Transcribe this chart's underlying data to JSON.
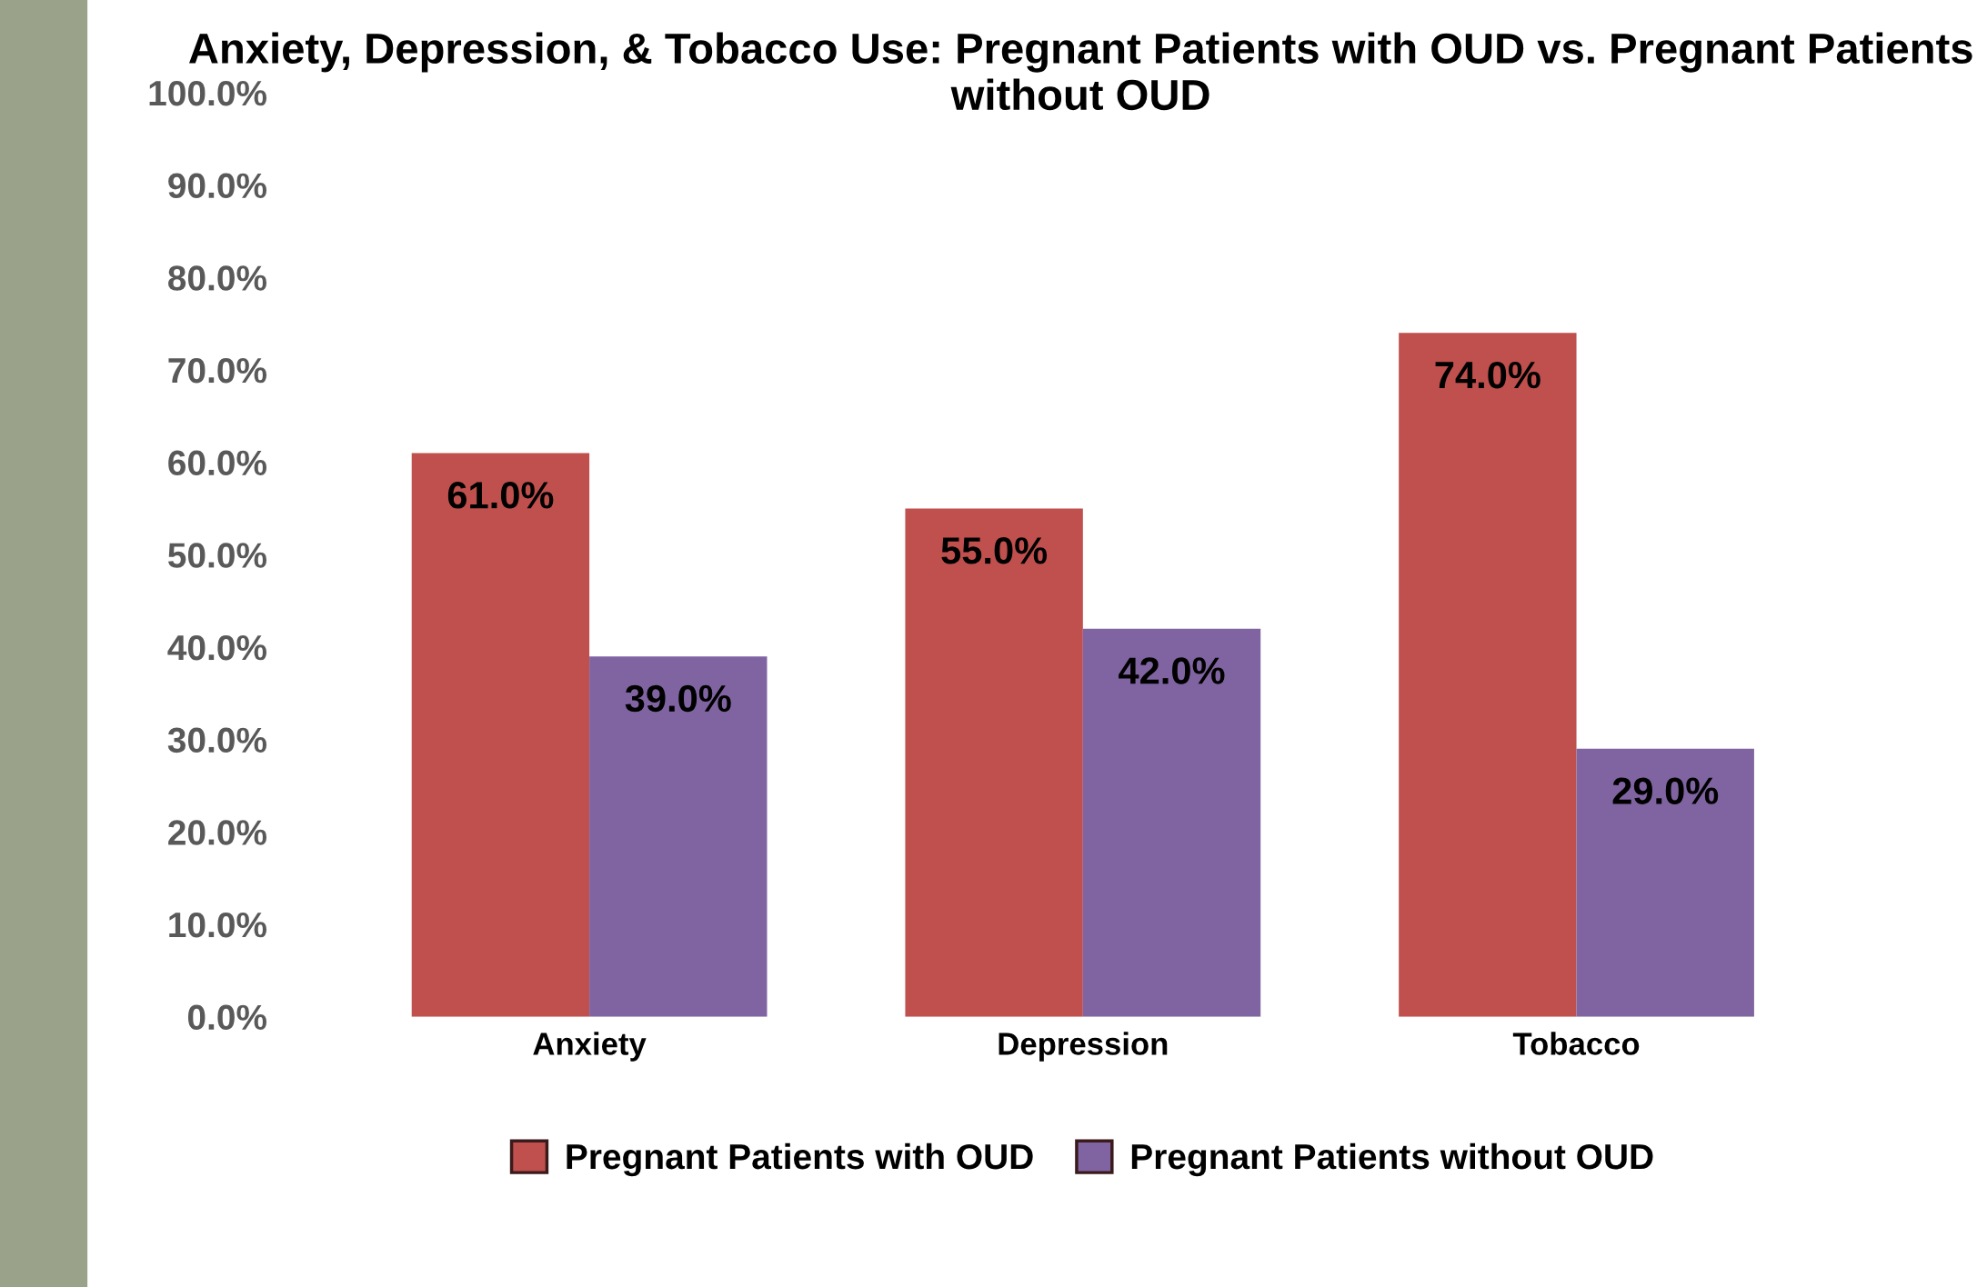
{
  "chart_data": {
    "type": "bar",
    "title": "Anxiety, Depression, & Tobacco Use: Pregnant Patients with OUD vs. Pregnant Patients without OUD",
    "categories": [
      "Anxiety",
      "Depression",
      "Tobacco"
    ],
    "series": [
      {
        "name": "Pregnant Patients with OUD",
        "color": "#c0504d",
        "values": [
          61.0,
          55.0,
          74.0
        ],
        "value_labels": [
          "61.0%",
          "55.0%",
          "74.0%"
        ]
      },
      {
        "name": "Pregnant Patients without OUD",
        "color": "#8064a2",
        "values": [
          39.0,
          42.0,
          29.0
        ],
        "value_labels": [
          "39.0%",
          "42.0%",
          "29.0%"
        ]
      }
    ],
    "ylim": [
      0,
      100
    ],
    "yticks": [
      {
        "value": 0,
        "label": "0.0%"
      },
      {
        "value": 10,
        "label": "10.0%"
      },
      {
        "value": 20,
        "label": "20.0%"
      },
      {
        "value": 30,
        "label": "30.0%"
      },
      {
        "value": 40,
        "label": "40.0%"
      },
      {
        "value": 50,
        "label": "50.0%"
      },
      {
        "value": 60,
        "label": "60.0%"
      },
      {
        "value": 70,
        "label": "70.0%"
      },
      {
        "value": 80,
        "label": "80.0%"
      },
      {
        "value": 90,
        "label": "90.0%"
      },
      {
        "value": 100,
        "label": "100.0%"
      }
    ],
    "grid": false,
    "legend": "bottom"
  }
}
